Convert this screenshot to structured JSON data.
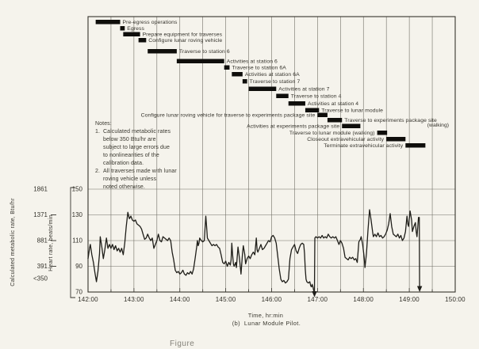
{
  "figure": {
    "caption": "(b)  Lunar Module Pilot.",
    "figure_label_fragment": "Figure",
    "xlabel": "Time, hr:min",
    "notes": {
      "heading": "Notes:",
      "items": [
        {
          "number": "1.",
          "lines": [
            "Calculated metabolic rates",
            "below 350 Btu/hr are",
            "subject to large errors due",
            "to nonlinearities of the",
            "calibration data."
          ]
        },
        {
          "number": "2.",
          "lines": [
            "All traverses made with lunar",
            "roving vehicle unless",
            "noted otherwise."
          ]
        }
      ]
    }
  },
  "colors": {
    "paper": "#f5f3ec",
    "ink": "#34322b",
    "grid": "#716f66",
    "frame": "#35332d",
    "bar": "#0f0e0b",
    "line": "#1f1e19"
  },
  "chart_data": {
    "type": "line",
    "title": "",
    "xlabel": "Time, hr:min",
    "x_tick_labels": [
      "142:00",
      "143:00",
      "144:00",
      "145:00",
      "146:00",
      "147:00",
      "148:00",
      "149:00",
      "150:00"
    ],
    "x_range": [
      "142:00",
      "150:00"
    ],
    "x_minor_tick_minutes": 30,
    "grid": {
      "vertical_every_minutes": 30,
      "horizontal_at_bpm": [
        90,
        110,
        130,
        150
      ]
    },
    "heart_rate_axis": {
      "label": "Heart rate, beats/min",
      "ticks": [
        150,
        130,
        110,
        90,
        70
      ],
      "range": [
        70,
        150
      ]
    },
    "metabolic_axis": {
      "label": "Calculated metabolic rate, Btu/hr",
      "tick_labels": [
        "1861",
        "1371",
        "881",
        "391",
        "<350"
      ]
    },
    "timeline": {
      "activities": [
        {
          "label": "Pre-egress operations",
          "start": "142:10",
          "end": "142:42",
          "label_side": "right"
        },
        {
          "label": "Egress",
          "start": "142:42",
          "end": "142:48",
          "label_side": "right"
        },
        {
          "label": "Prepare equipment for traverses",
          "start": "142:46",
          "end": "143:08",
          "label_side": "right"
        },
        {
          "label": "Configure lunar roving vehicle",
          "start": "143:06",
          "end": "143:16",
          "label_side": "right"
        },
        {
          "label": "Traverse to station 6",
          "start": "143:18",
          "end": "143:56",
          "label_side": "right"
        },
        {
          "label": "Activities at station 6",
          "start": "143:56",
          "end": "144:58",
          "label_side": "right"
        },
        {
          "label": "Traverse to station 6A",
          "start": "144:58",
          "end": "145:05",
          "label_side": "right"
        },
        {
          "label": "Activities at station 6A",
          "start": "145:08",
          "end": "145:22",
          "label_side": "right"
        },
        {
          "label": "Traverse to station 7",
          "start": "145:22",
          "end": "145:28",
          "label_side": "right"
        },
        {
          "label": "Activities at station 7",
          "start": "145:30",
          "end": "146:06",
          "label_side": "right"
        },
        {
          "label": "Traverse to station 4",
          "start": "146:06",
          "end": "146:22",
          "label_side": "right"
        },
        {
          "label": "Activities at station 4",
          "start": "146:22",
          "end": "146:44",
          "label_side": "right"
        },
        {
          "label": "Traverse to lunar module",
          "start": "146:44",
          "end": "147:02",
          "label_side": "right"
        },
        {
          "label": "Configure lunar roving vehicle for traverse to experiments package site",
          "start": "147:00",
          "end": "147:13",
          "label_side": "left"
        },
        {
          "label": "Traverse to experiments package site",
          "label2": "(walking)",
          "start": "147:13",
          "end": "147:32",
          "label_side": "right"
        },
        {
          "label": "Activities at experiments package site",
          "start": "147:32",
          "end": "147:56",
          "label_side": "left"
        },
        {
          "label": "Traverse to lunar module (walking)",
          "start": "148:18",
          "end": "148:31",
          "label_side": "left"
        },
        {
          "label": "Closeout extravehicular activity",
          "start": "148:30",
          "end": "148:55",
          "label_side": "left"
        },
        {
          "label": "Terminate extravehicular activity",
          "start": "148:55",
          "end": "149:21",
          "label_side": "left"
        }
      ]
    },
    "heart_rate_series_format": "[minutes after 142:00, beats per minute]",
    "heart_rate_series": [
      [
        0,
        96
      ],
      [
        2,
        104
      ],
      [
        3,
        107
      ],
      [
        5,
        99
      ],
      [
        7,
        93
      ],
      [
        9,
        85
      ],
      [
        11,
        78
      ],
      [
        13,
        86
      ],
      [
        15,
        100
      ],
      [
        16,
        113
      ],
      [
        18,
        105
      ],
      [
        20,
        96
      ],
      [
        22,
        103
      ],
      [
        24,
        112
      ],
      [
        26,
        104
      ],
      [
        28,
        107
      ],
      [
        30,
        104
      ],
      [
        32,
        107
      ],
      [
        34,
        103
      ],
      [
        36,
        106
      ],
      [
        38,
        102
      ],
      [
        40,
        104
      ],
      [
        42,
        101
      ],
      [
        44,
        104
      ],
      [
        46,
        99
      ],
      [
        48,
        108
      ],
      [
        50,
        121
      ],
      [
        52,
        132
      ],
      [
        54,
        127
      ],
      [
        56,
        129
      ],
      [
        58,
        126
      ],
      [
        60,
        125
      ],
      [
        62,
        126
      ],
      [
        64,
        123
      ],
      [
        66,
        122
      ],
      [
        68,
        121
      ],
      [
        70,
        119
      ],
      [
        72,
        115
      ],
      [
        74,
        111
      ],
      [
        76,
        112
      ],
      [
        78,
        115
      ],
      [
        80,
        112
      ],
      [
        82,
        110
      ],
      [
        84,
        112
      ],
      [
        86,
        104
      ],
      [
        88,
        107
      ],
      [
        90,
        110
      ],
      [
        92,
        115
      ],
      [
        94,
        110
      ],
      [
        96,
        109
      ],
      [
        98,
        113
      ],
      [
        100,
        112
      ],
      [
        102,
        111
      ],
      [
        104,
        110
      ],
      [
        106,
        112
      ],
      [
        108,
        110
      ],
      [
        110,
        101
      ],
      [
        112,
        95
      ],
      [
        114,
        87
      ],
      [
        116,
        85
      ],
      [
        118,
        86
      ],
      [
        120,
        84
      ],
      [
        122,
        85
      ],
      [
        124,
        87
      ],
      [
        126,
        84
      ],
      [
        128,
        83
      ],
      [
        130,
        85
      ],
      [
        132,
        84
      ],
      [
        134,
        86
      ],
      [
        136,
        84
      ],
      [
        138,
        88
      ],
      [
        140,
        96
      ],
      [
        142,
        105
      ],
      [
        143,
        110
      ],
      [
        144,
        106
      ],
      [
        145,
        108
      ],
      [
        146,
        112
      ],
      [
        148,
        110
      ],
      [
        150,
        109
      ],
      [
        152,
        110
      ],
      [
        154,
        129
      ],
      [
        155,
        121
      ],
      [
        156,
        112
      ],
      [
        158,
        110
      ],
      [
        160,
        108
      ],
      [
        162,
        106
      ],
      [
        164,
        107
      ],
      [
        166,
        106
      ],
      [
        168,
        107
      ],
      [
        170,
        105
      ],
      [
        172,
        104
      ],
      [
        174,
        99
      ],
      [
        176,
        93
      ],
      [
        178,
        92
      ],
      [
        180,
        94
      ],
      [
        182,
        90
      ],
      [
        184,
        93
      ],
      [
        186,
        91
      ],
      [
        187,
        95
      ],
      [
        188,
        108
      ],
      [
        189,
        99
      ],
      [
        190,
        92
      ],
      [
        191,
        90
      ],
      [
        193,
        93
      ],
      [
        194,
        89
      ],
      [
        196,
        105
      ],
      [
        198,
        96
      ],
      [
        200,
        84
      ],
      [
        202,
        100
      ],
      [
        203,
        106
      ],
      [
        205,
        99
      ],
      [
        206,
        92
      ],
      [
        208,
        96
      ],
      [
        210,
        98
      ],
      [
        212,
        96
      ],
      [
        214,
        99
      ],
      [
        216,
        101
      ],
      [
        218,
        99
      ],
      [
        220,
        112
      ],
      [
        221,
        103
      ],
      [
        222,
        101
      ],
      [
        224,
        104
      ],
      [
        226,
        107
      ],
      [
        228,
        103
      ],
      [
        230,
        104
      ],
      [
        232,
        106
      ],
      [
        234,
        108
      ],
      [
        236,
        110
      ],
      [
        238,
        109
      ],
      [
        240,
        113
      ],
      [
        242,
        114
      ],
      [
        244,
        112
      ],
      [
        246,
        108
      ],
      [
        248,
        98
      ],
      [
        250,
        88
      ],
      [
        251,
        84
      ],
      [
        252,
        80
      ],
      [
        254,
        78
      ],
      [
        256,
        79
      ],
      [
        258,
        77
      ],
      [
        260,
        78
      ],
      [
        262,
        80
      ],
      [
        264,
        96
      ],
      [
        266,
        103
      ],
      [
        268,
        105
      ],
      [
        270,
        107
      ],
      [
        272,
        102
      ],
      [
        274,
        100
      ],
      [
        276,
        104
      ],
      [
        278,
        107
      ],
      [
        280,
        108
      ],
      [
        282,
        107
      ],
      [
        283,
        100
      ],
      [
        284,
        88
      ],
      [
        285,
        80
      ],
      [
        286,
        78
      ],
      [
        288,
        77
      ],
      [
        290,
        78
      ],
      [
        291,
        75
      ],
      [
        292,
        74
      ],
      [
        293,
        76
      ],
      [
        294,
        74
      ],
      [
        295,
        71
      ],
      [
        296,
        70
      ],
      [
        296.5,
        112
      ],
      [
        298,
        113
      ],
      [
        300,
        112
      ],
      [
        302,
        113
      ],
      [
        304,
        112
      ],
      [
        306,
        114
      ],
      [
        308,
        112
      ],
      [
        310,
        113
      ],
      [
        312,
        112
      ],
      [
        314,
        115
      ],
      [
        316,
        113
      ],
      [
        318,
        112
      ],
      [
        320,
        113
      ],
      [
        322,
        112
      ],
      [
        324,
        113
      ],
      [
        326,
        110
      ],
      [
        328,
        107
      ],
      [
        330,
        110
      ],
      [
        332,
        108
      ],
      [
        334,
        104
      ],
      [
        336,
        97
      ],
      [
        338,
        96
      ],
      [
        340,
        95
      ],
      [
        342,
        97
      ],
      [
        344,
        96
      ],
      [
        346,
        97
      ],
      [
        348,
        95
      ],
      [
        350,
        96
      ],
      [
        352,
        93
      ],
      [
        354,
        109
      ],
      [
        356,
        111
      ],
      [
        357,
        113
      ],
      [
        359,
        107
      ],
      [
        361,
        97
      ],
      [
        362,
        89
      ],
      [
        364,
        100
      ],
      [
        366,
        118
      ],
      [
        368,
        134
      ],
      [
        370,
        126
      ],
      [
        372,
        117
      ],
      [
        373,
        113
      ],
      [
        375,
        115
      ],
      [
        377,
        113
      ],
      [
        379,
        116
      ],
      [
        381,
        113
      ],
      [
        383,
        114
      ],
      [
        385,
        112
      ],
      [
        387,
        113
      ],
      [
        389,
        115
      ],
      [
        391,
        118
      ],
      [
        393,
        123
      ],
      [
        395,
        131
      ],
      [
        397,
        121
      ],
      [
        399,
        115
      ],
      [
        401,
        114
      ],
      [
        403,
        113
      ],
      [
        405,
        115
      ],
      [
        407,
        112
      ],
      [
        409,
        114
      ],
      [
        411,
        110
      ],
      [
        413,
        112
      ],
      [
        415,
        117
      ],
      [
        417,
        129
      ],
      [
        418,
        123
      ],
      [
        419,
        121
      ],
      [
        421,
        133
      ],
      [
        423,
        126
      ],
      [
        424,
        117
      ],
      [
        426,
        121
      ],
      [
        428,
        124
      ],
      [
        429,
        117
      ],
      [
        430,
        113
      ],
      [
        431,
        120
      ],
      [
        432,
        128
      ],
      [
        433,
        128
      ],
      [
        433.5,
        74
      ]
    ],
    "offscale_arrows": [
      {
        "t_min": 296,
        "bpm": 70,
        "meaning": "heart rate dips below scale near 147:00"
      },
      {
        "t_min": 433.5,
        "bpm": 74,
        "meaning": "record ends with downward arrow at EVA termination"
      }
    ]
  }
}
